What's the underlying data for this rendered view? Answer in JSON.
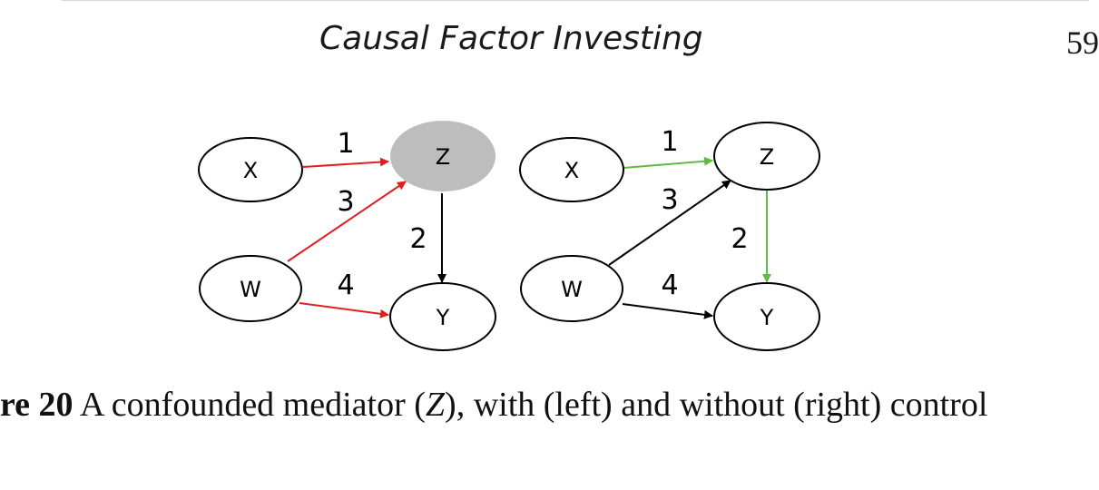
{
  "header": {
    "running_title": "Causal Factor Investing",
    "page_number": "59"
  },
  "figure": {
    "left_panel": {
      "nodes": {
        "X": "X",
        "Z": "Z",
        "W": "W",
        "Y": "Y"
      },
      "edge_labels": {
        "e1": "1",
        "e2": "2",
        "e3": "3",
        "e4": "4"
      }
    },
    "right_panel": {
      "nodes": {
        "X": "X",
        "Z": "Z",
        "W": "W",
        "Y": "Y"
      },
      "edge_labels": {
        "e1": "1",
        "e2": "2",
        "e3": "3",
        "e4": "4"
      }
    }
  },
  "caption": {
    "label": "re 20",
    "text_before": " A confounded mediator (",
    "variable": "Z",
    "text_after": "), with (left) and without (right) control"
  },
  "colors": {
    "red_path": "#e02020",
    "green_path": "#5dbb46",
    "black_path": "#000000",
    "controlled_node_fill": "#bdbdbd"
  }
}
